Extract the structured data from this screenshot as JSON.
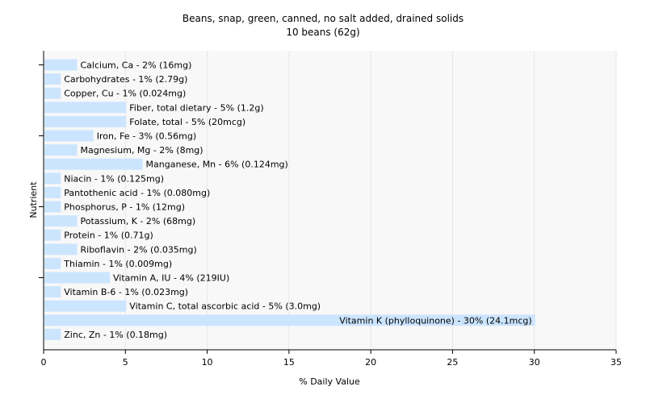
{
  "chart_data": {
    "type": "bar",
    "orientation": "horizontal",
    "title": "Beans, snap, green, canned, no salt added, drained solids",
    "subtitle": "10 beans (62g)",
    "xlabel": "% Daily Value",
    "ylabel": "Nutrient",
    "xlim": [
      0,
      35
    ],
    "xticks": [
      0,
      5,
      10,
      15,
      20,
      25,
      30,
      35
    ],
    "grid": true,
    "colors": {
      "bar": "#cce5ff",
      "plot_bg": "#f8f8f8",
      "grid": "#e6e6e6"
    },
    "categories": [
      "Calcium, Ca",
      "Carbohydrates",
      "Copper, Cu",
      "Fiber, total dietary",
      "Folate, total",
      "Iron, Fe",
      "Magnesium, Mg",
      "Manganese, Mn",
      "Niacin",
      "Pantothenic acid",
      "Phosphorus, P",
      "Potassium, K",
      "Protein",
      "Riboflavin",
      "Thiamin",
      "Vitamin A, IU",
      "Vitamin B-6",
      "Vitamin C, total ascorbic acid",
      "Vitamin K (phylloquinone)",
      "Zinc, Zn"
    ],
    "values": [
      2,
      1,
      1,
      5,
      5,
      3,
      2,
      6,
      1,
      1,
      1,
      2,
      1,
      2,
      1,
      4,
      1,
      5,
      30,
      1
    ],
    "labels": [
      "Calcium, Ca - 2% (16mg)",
      "Carbohydrates - 1% (2.79g)",
      "Copper, Cu - 1% (0.024mg)",
      "Fiber, total dietary - 5% (1.2g)",
      "Folate, total - 5% (20mcg)",
      "Iron, Fe - 3% (0.56mg)",
      "Magnesium, Mg - 2% (8mg)",
      "Manganese, Mn - 6% (0.124mg)",
      "Niacin - 1% (0.125mg)",
      "Pantothenic acid - 1% (0.080mg)",
      "Phosphorus, P - 1% (12mg)",
      "Potassium, K - 2% (68mg)",
      "Protein - 1% (0.71g)",
      "Riboflavin - 2% (0.035mg)",
      "Thiamin - 1% (0.009mg)",
      "Vitamin A, IU - 4% (219IU)",
      "Vitamin B-6 - 1% (0.023mg)",
      "Vitamin C, total ascorbic acid - 5% (3.0mg)",
      "Vitamin K (phylloquinone) - 30% (24.1mcg)",
      "Zinc, Zn - 1% (0.18mg)"
    ]
  }
}
